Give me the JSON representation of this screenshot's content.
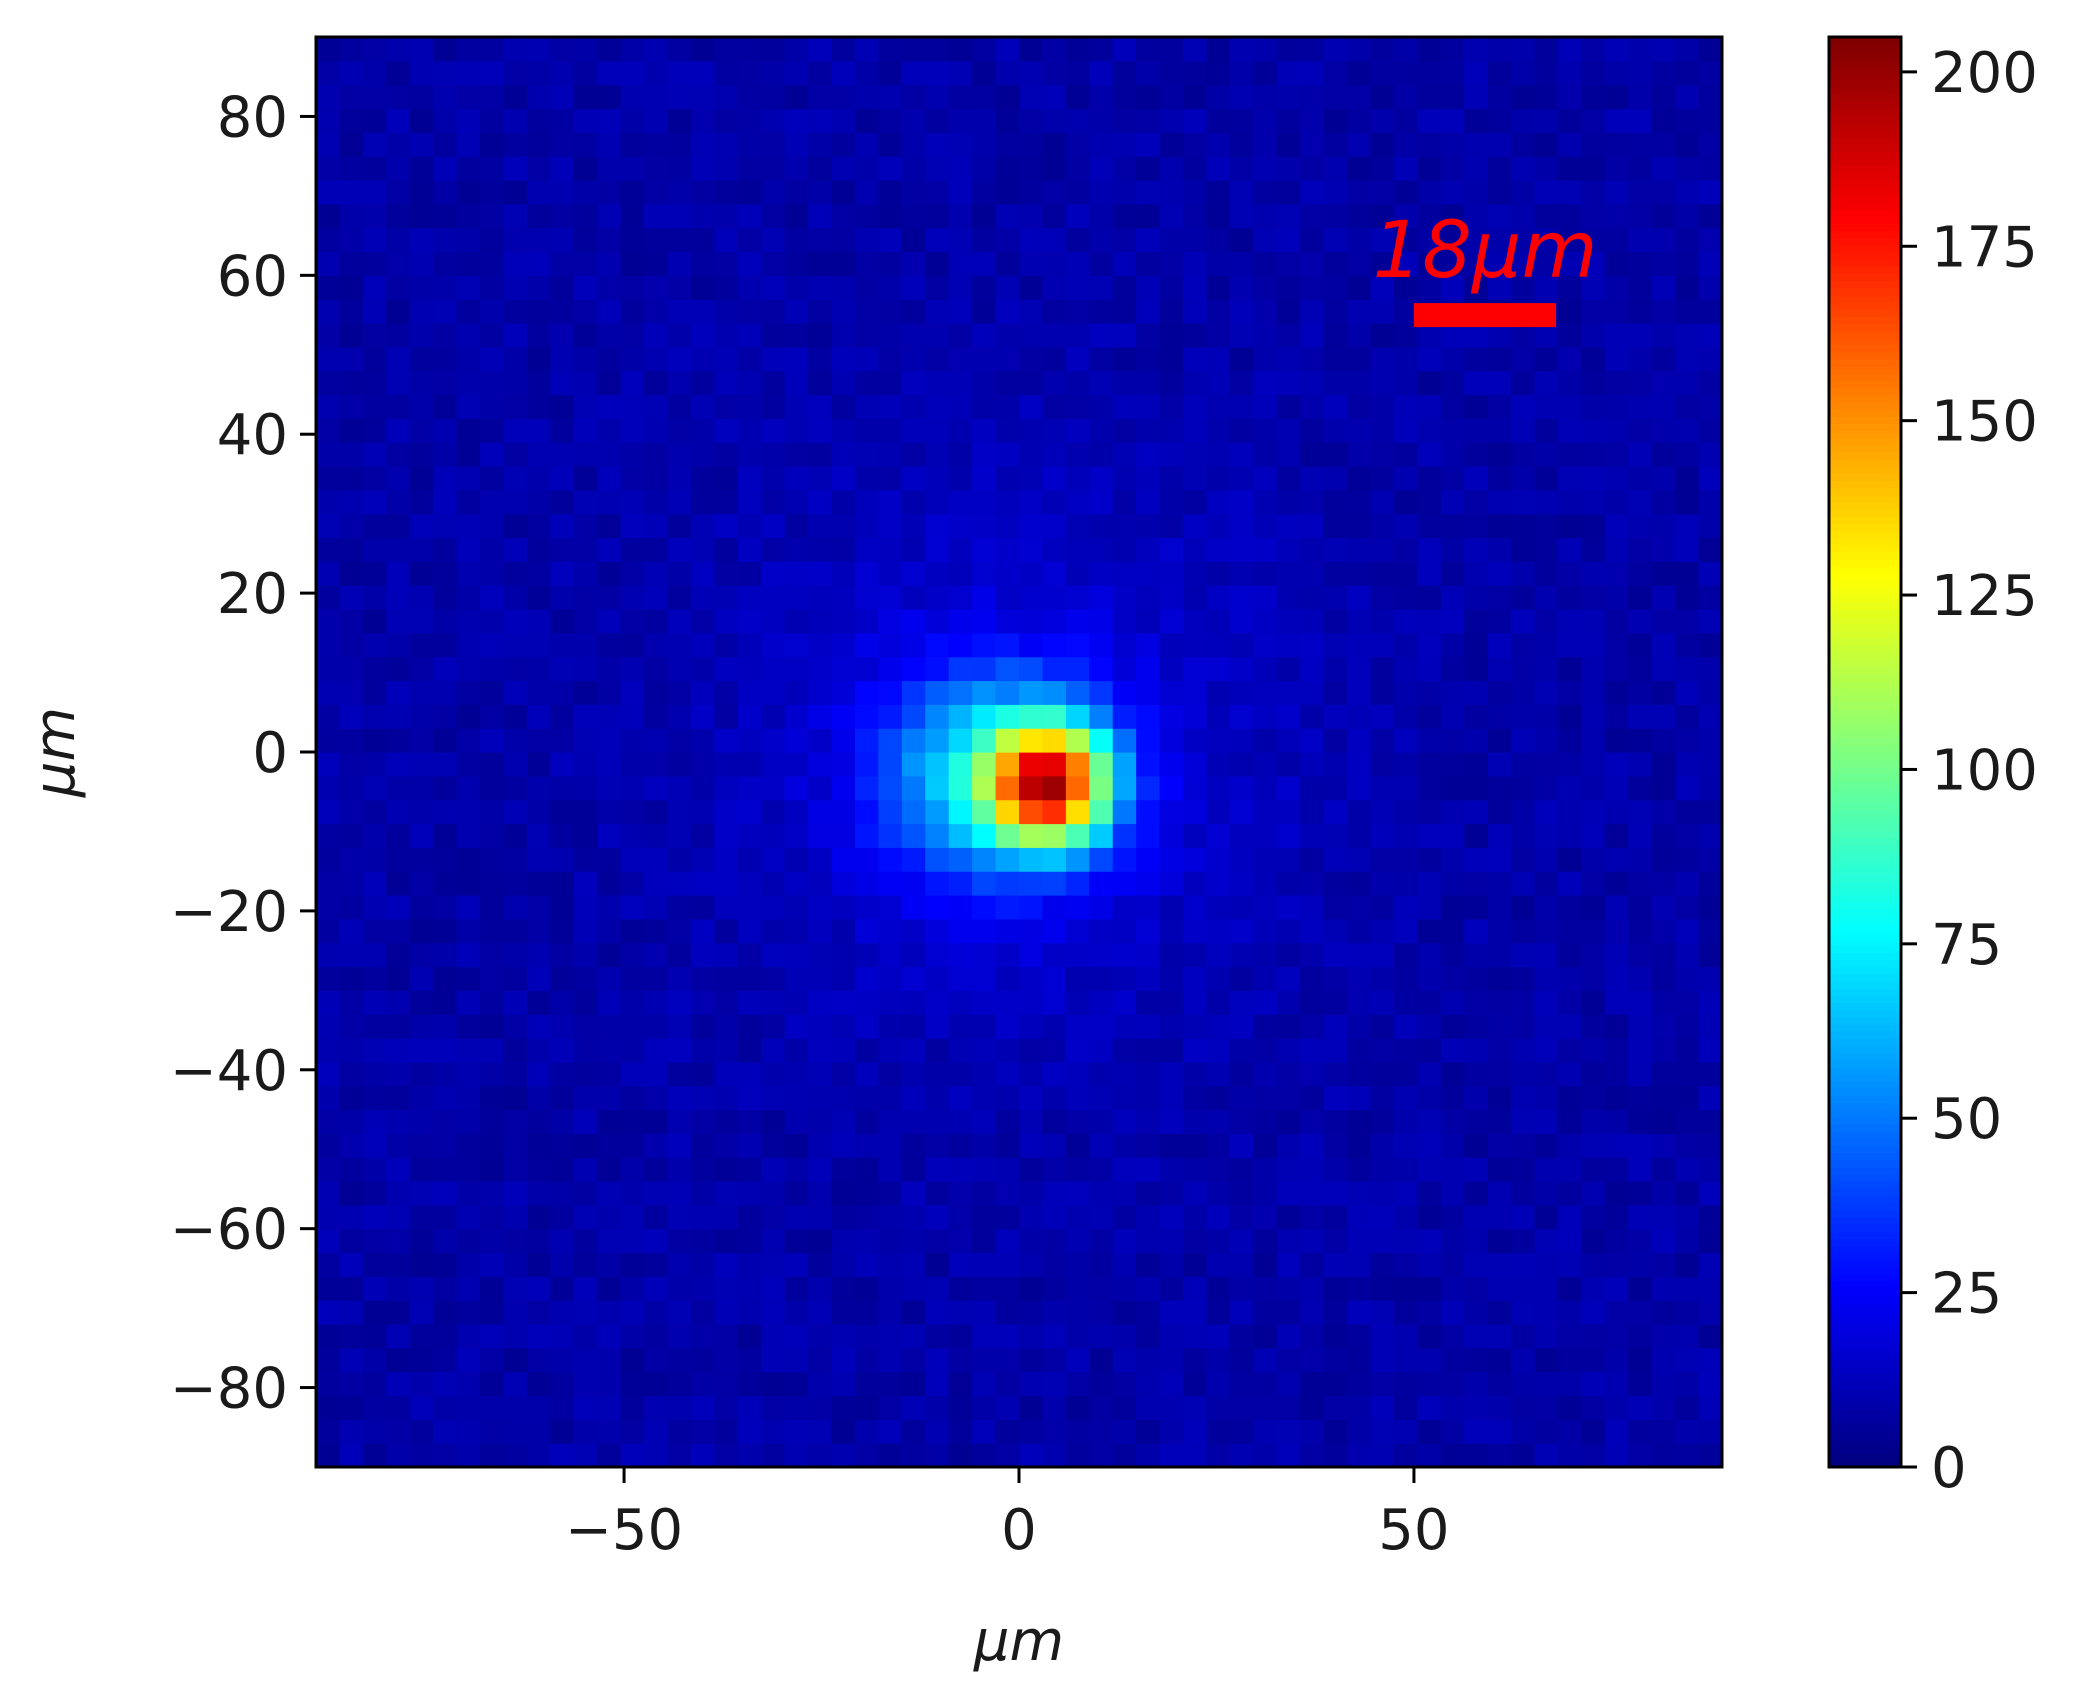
{
  "chart_data": {
    "type": "heatmap",
    "title": "",
    "xlabel": "μm",
    "ylabel": "μm",
    "xlim": [
      -89,
      89
    ],
    "ylim": [
      -90,
      90
    ],
    "x_ticks": [
      -50,
      0,
      50
    ],
    "x_tick_labels": [
      "−50",
      "0",
      "50"
    ],
    "y_ticks": [
      -80,
      -60,
      -40,
      -20,
      0,
      20,
      40,
      60,
      80
    ],
    "y_tick_labels": [
      "−80",
      "−60",
      "−40",
      "−20",
      "0",
      "20",
      "40",
      "60",
      "80"
    ],
    "colormap": "jet",
    "colorbar": {
      "range": [
        0,
        205
      ],
      "ticks": [
        0,
        25,
        50,
        75,
        100,
        125,
        150,
        175,
        200
      ],
      "tick_labels": [
        "0",
        "25",
        "50",
        "75",
        "100",
        "125",
        "150",
        "175",
        "200"
      ]
    },
    "grid": false,
    "spot": {
      "center": [
        4,
        -4
      ],
      "peak_value": 205,
      "background_value": 8,
      "halo_center": [
        -3,
        -3
      ]
    },
    "scale_bar": {
      "label": "18μm",
      "length": 18,
      "x_start": 50,
      "y": 55,
      "color": "#ff0000"
    }
  }
}
